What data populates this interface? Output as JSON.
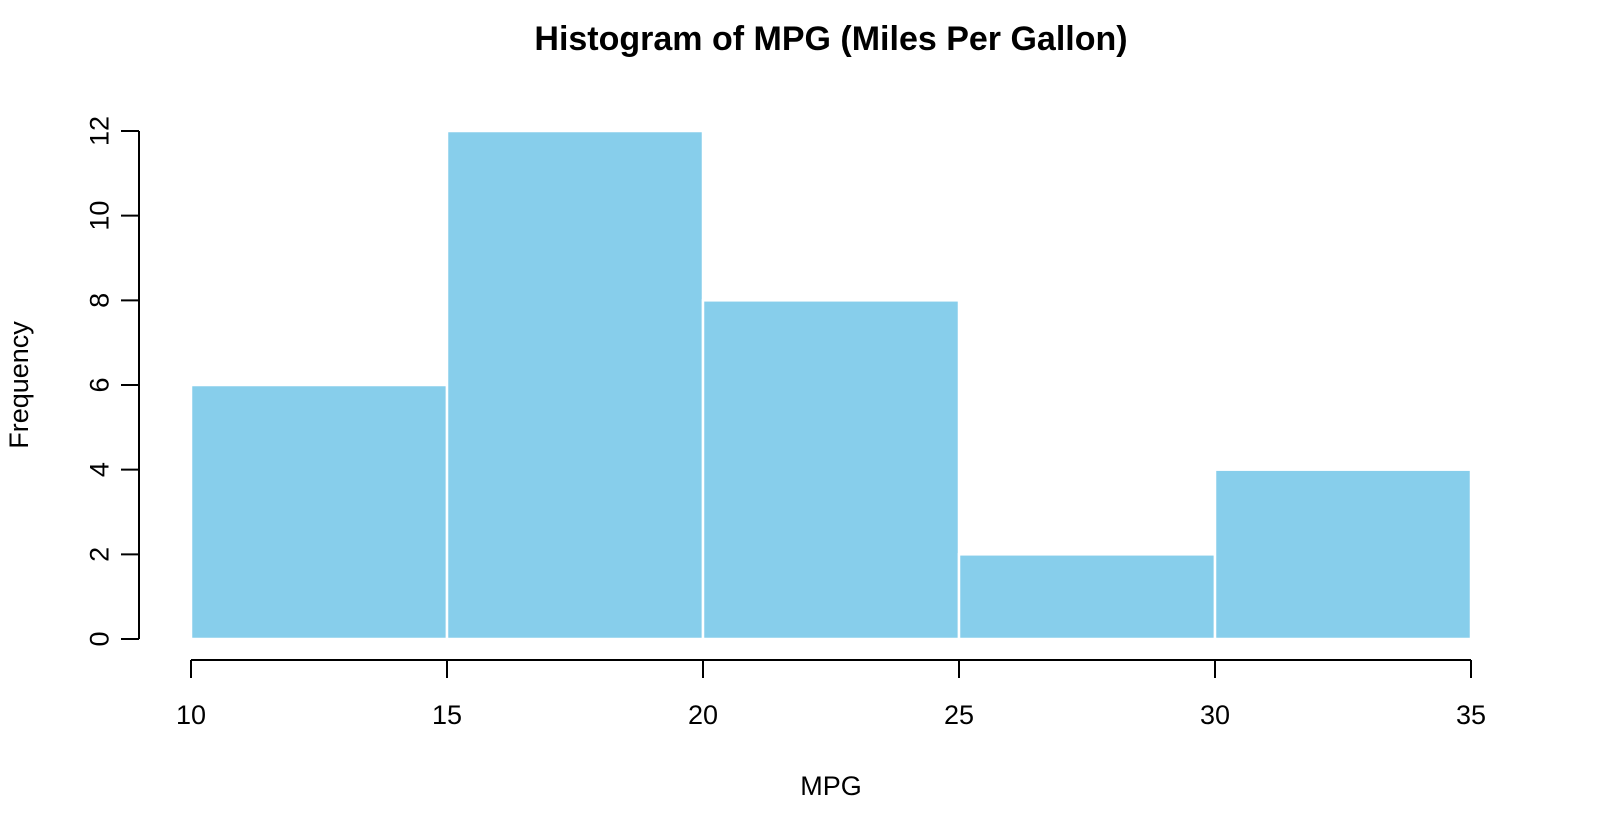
{
  "chart_data": {
    "type": "bar",
    "title": "Histogram of MPG (Miles Per Gallon)",
    "xlabel": "MPG",
    "ylabel": "Frequency",
    "bins": [
      {
        "start": 10,
        "end": 15,
        "count": 6
      },
      {
        "start": 15,
        "end": 20,
        "count": 12
      },
      {
        "start": 20,
        "end": 25,
        "count": 8
      },
      {
        "start": 25,
        "end": 30,
        "count": 2
      },
      {
        "start": 30,
        "end": 35,
        "count": 4
      }
    ],
    "categories": [
      "10-15",
      "15-20",
      "20-25",
      "25-30",
      "30-35"
    ],
    "values": [
      6,
      12,
      8,
      2,
      4
    ],
    "xlim": [
      10,
      35
    ],
    "ylim": [
      0,
      12
    ],
    "x_ticks": [
      "10",
      "15",
      "20",
      "25",
      "30",
      "35"
    ],
    "y_ticks": [
      "0",
      "2",
      "4",
      "6",
      "8",
      "10",
      "12"
    ],
    "grid": false,
    "bar_color": "#87CEEB",
    "bar_border_color": "#FFFFFF"
  }
}
